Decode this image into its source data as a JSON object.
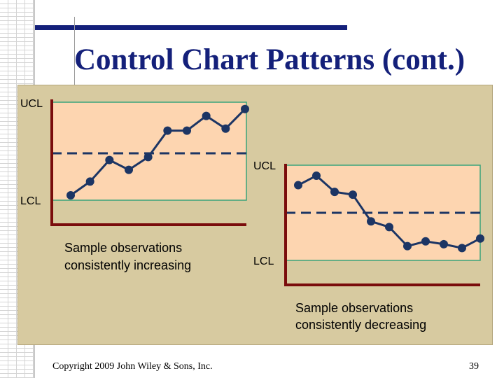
{
  "slide": {
    "title": "Control Chart Patterns (cont.)",
    "footer_copyright": "Copyright 2009 John Wiley & Sons, Inc.",
    "page_number": "39"
  },
  "colors": {
    "title": "#14207a",
    "panel": "#d7caa0",
    "plot_fill": "#fdd5b0",
    "plot_border": "#3aa37a",
    "axis": "#7a0c0c",
    "data": "#1c3564",
    "centerline": "#1c3564"
  },
  "chart_data": [
    {
      "type": "line",
      "title": "",
      "upper_label": "UCL",
      "lower_label": "LCL",
      "caption": "Sample observations consistently increasing",
      "caption_lines": [
        "Sample observations",
        "consistently increasing"
      ],
      "x": [
        1,
        2,
        3,
        4,
        5,
        6,
        7,
        8,
        9,
        10
      ],
      "values": [
        0.05,
        0.19,
        0.41,
        0.31,
        0.44,
        0.71,
        0.71,
        0.86,
        0.73,
        0.93
      ],
      "ylim": [
        0,
        1
      ],
      "centerline": 0.47,
      "xlabel": "",
      "ylabel": ""
    },
    {
      "type": "line",
      "title": "",
      "upper_label": "UCL",
      "lower_label": "LCL",
      "caption": "Sample observations consistently decreasing",
      "caption_lines": [
        "Sample observations",
        "consistently decreasing"
      ],
      "x": [
        1,
        2,
        3,
        4,
        5,
        6,
        7,
        8,
        9,
        10,
        11
      ],
      "values": [
        0.79,
        0.89,
        0.72,
        0.69,
        0.41,
        0.35,
        0.15,
        0.2,
        0.17,
        0.13,
        0.23
      ],
      "ylim": [
        0,
        1
      ],
      "centerline": 0.51,
      "xlabel": "",
      "ylabel": ""
    }
  ]
}
